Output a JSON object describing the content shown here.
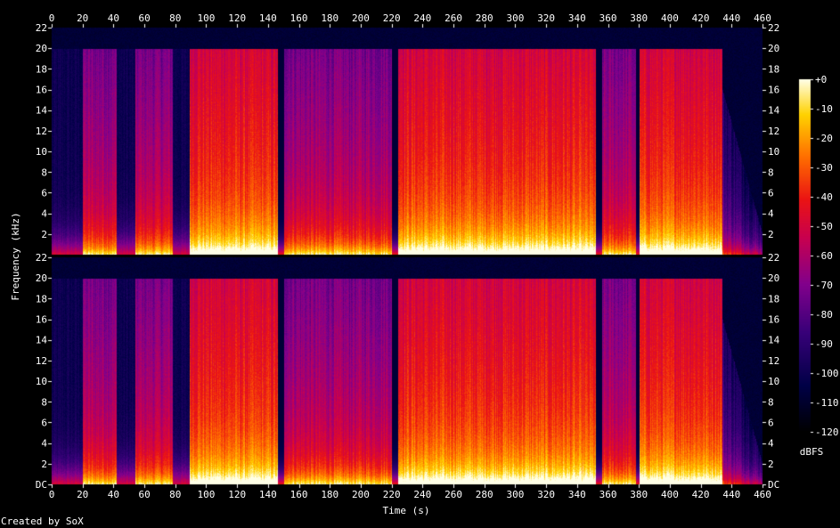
{
  "chart_data": {
    "type": "heatmap",
    "title": "",
    "xlabel": "Time (s)",
    "ylabel": "Frequency (kHz)",
    "colorbar_label": "dBFS",
    "credit": "Created by SoX",
    "x_ticks": [
      0,
      20,
      40,
      60,
      80,
      100,
      120,
      140,
      160,
      180,
      200,
      220,
      240,
      260,
      280,
      300,
      320,
      340,
      360,
      380,
      400,
      420,
      440,
      460
    ],
    "xlim": [
      0,
      460
    ],
    "y_ticks": [
      "DC",
      "2",
      "4",
      "6",
      "8",
      "10",
      "12",
      "14",
      "16",
      "18",
      "20",
      "22"
    ],
    "ylim_khz": [
      0,
      22
    ],
    "colorbar_ticks": [
      "+0",
      "-10",
      "-20",
      "-30",
      "-40",
      "-50",
      "-60",
      "-70",
      "-80",
      "-90",
      "-100",
      "-110",
      "-120"
    ],
    "colorbar_range_dbfs": [
      -120,
      0
    ],
    "channels": 2,
    "segments": [
      {
        "start": 0,
        "end": 20,
        "level": "quiet",
        "cutoff_khz": 20
      },
      {
        "start": 20,
        "end": 42,
        "level": "medium",
        "cutoff_khz": 20
      },
      {
        "start": 42,
        "end": 54,
        "level": "quiet",
        "cutoff_khz": 20
      },
      {
        "start": 54,
        "end": 78,
        "level": "medium",
        "cutoff_khz": 20
      },
      {
        "start": 78,
        "end": 89,
        "level": "quiet",
        "cutoff_khz": 20
      },
      {
        "start": 89,
        "end": 146,
        "level": "loud",
        "cutoff_khz": 20
      },
      {
        "start": 146,
        "end": 150,
        "level": "gap",
        "cutoff_khz": 20
      },
      {
        "start": 150,
        "end": 220,
        "level": "medium",
        "cutoff_khz": 20
      },
      {
        "start": 220,
        "end": 224,
        "level": "gap",
        "cutoff_khz": 20
      },
      {
        "start": 224,
        "end": 352,
        "level": "loud",
        "cutoff_khz": 20
      },
      {
        "start": 352,
        "end": 356,
        "level": "gap",
        "cutoff_khz": 20
      },
      {
        "start": 356,
        "end": 378,
        "level": "medium",
        "cutoff_khz": 20
      },
      {
        "start": 378,
        "end": 380,
        "level": "gap",
        "cutoff_khz": 20
      },
      {
        "start": 380,
        "end": 434,
        "level": "loud",
        "cutoff_khz": 20
      },
      {
        "start": 434,
        "end": 460,
        "level": "fade",
        "cutoff_khz": 16
      }
    ]
  }
}
